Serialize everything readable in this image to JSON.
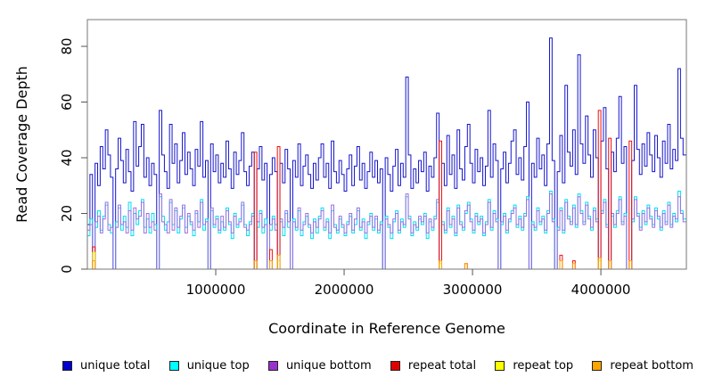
{
  "chart_data": {
    "type": "line",
    "subtype": "step",
    "title": "",
    "xlabel": "Coordinate in Reference Genome",
    "ylabel": "Read Coverage Depth",
    "xlim": [
      0,
      4666000
    ],
    "ylim": [
      0,
      89.6
    ],
    "bin_size": 20000,
    "grid": false,
    "legend_position": "bottom",
    "axis_color": "#777777",
    "tick_color": "#555555",
    "text_color": "#000000",
    "xticks": [
      {
        "value": 1000000,
        "label": "1000000"
      },
      {
        "value": 2000000,
        "label": "2000000"
      },
      {
        "value": 3000000,
        "label": "3000000"
      },
      {
        "value": 4000000,
        "label": "4000000"
      }
    ],
    "yticks": [
      {
        "value": 0,
        "label": "0"
      },
      {
        "value": 20,
        "label": "20"
      },
      {
        "value": 40,
        "label": "40"
      },
      {
        "value": 60,
        "label": "60"
      },
      {
        "value": 80,
        "label": "80"
      }
    ],
    "series": [
      {
        "name": "unique total",
        "color": "#1414CC",
        "legend_color": "#0000CD",
        "values": [
          16,
          34,
          0,
          38,
          30,
          44,
          36,
          50,
          41,
          33,
          0,
          36,
          47,
          39,
          31,
          43,
          35,
          28,
          53,
          37,
          44,
          52,
          33,
          40,
          30,
          38,
          34,
          0,
          57,
          41,
          35,
          29,
          52,
          38,
          45,
          31,
          39,
          49,
          34,
          42,
          36,
          30,
          43,
          37,
          53,
          33,
          39,
          0,
          45,
          35,
          41,
          31,
          38,
          33,
          46,
          36,
          29,
          42,
          34,
          39,
          49,
          35,
          30,
          37,
          42,
          0,
          36,
          44,
          32,
          38,
          0,
          34,
          40,
          35,
          0,
          38,
          31,
          43,
          36,
          0,
          39,
          33,
          45,
          30,
          37,
          41,
          34,
          29,
          38,
          32,
          40,
          45,
          33,
          38,
          29,
          46,
          35,
          31,
          39,
          34,
          28,
          36,
          41,
          30,
          37,
          44,
          32,
          38,
          29,
          35,
          42,
          33,
          39,
          31,
          36,
          0,
          40,
          34,
          28,
          37,
          43,
          30,
          38,
          33,
          69,
          41,
          29,
          36,
          31,
          39,
          35,
          42,
          28,
          37,
          33,
          40,
          56,
          0,
          38,
          30,
          48,
          34,
          41,
          29,
          50,
          36,
          32,
          44,
          52,
          38,
          31,
          43,
          35,
          40,
          30,
          37,
          57,
          33,
          45,
          39,
          0,
          36,
          42,
          31,
          38,
          46,
          50,
          34,
          40,
          32,
          44,
          60,
          0,
          38,
          33,
          47,
          36,
          41,
          30,
          45,
          83,
          39,
          0,
          35,
          48,
          31,
          66,
          42,
          37,
          50,
          34,
          77,
          45,
          38,
          55,
          41,
          33,
          50,
          40,
          0,
          46,
          58,
          36,
          0,
          42,
          35,
          47,
          62,
          38,
          44,
          0,
          0,
          39,
          66,
          43,
          34,
          45,
          37,
          49,
          41,
          35,
          48,
          40,
          33,
          46,
          38,
          52,
          36,
          43,
          39,
          72,
          47,
          41
        ]
      },
      {
        "name": "unique top",
        "color": "#00DDF2",
        "legend_color": "#00FFFF",
        "values": [
          12,
          18,
          0,
          15,
          21,
          14,
          19,
          23,
          16,
          13,
          0,
          17,
          22,
          14,
          19,
          15,
          24,
          12,
          20,
          16,
          21,
          25,
          15,
          18,
          13,
          20,
          16,
          0,
          26,
          19,
          14,
          17,
          24,
          16,
          21,
          13,
          18,
          22,
          15,
          19,
          16,
          12,
          20,
          17,
          25,
          14,
          18,
          0,
          21,
          15,
          19,
          13,
          17,
          14,
          22,
          16,
          11,
          20,
          15,
          18,
          23,
          16,
          12,
          17,
          20,
          0,
          15,
          21,
          13,
          18,
          0,
          14,
          19,
          16,
          0,
          17,
          12,
          20,
          15,
          0,
          18,
          14,
          21,
          12,
          17,
          19,
          15,
          11,
          18,
          13,
          19,
          22,
          14,
          18,
          11,
          21,
          16,
          13,
          18,
          15,
          12,
          17,
          19,
          13,
          16,
          21,
          14,
          18,
          11,
          16,
          20,
          14,
          18,
          13,
          17,
          0,
          19,
          15,
          11,
          17,
          21,
          13,
          18,
          15,
          26,
          19,
          12,
          17,
          14,
          18,
          16,
          20,
          11,
          17,
          14,
          19,
          24,
          0,
          17,
          13,
          22,
          15,
          19,
          12,
          23,
          17,
          14,
          20,
          24,
          18,
          13,
          20,
          16,
          19,
          12,
          17,
          25,
          14,
          21,
          18,
          0,
          16,
          20,
          13,
          17,
          21,
          23,
          15,
          19,
          14,
          20,
          26,
          0,
          17,
          14,
          22,
          16,
          19,
          13,
          21,
          28,
          18,
          0,
          15,
          22,
          13,
          25,
          19,
          17,
          23,
          15,
          27,
          21,
          17,
          24,
          19,
          14,
          22,
          18,
          0,
          21,
          25,
          16,
          0,
          19,
          15,
          21,
          26,
          17,
          20,
          0,
          0,
          17,
          26,
          20,
          15,
          21,
          16,
          23,
          19,
          16,
          22,
          18,
          14,
          21,
          17,
          24,
          16,
          20,
          17,
          28,
          21,
          18
        ]
      },
      {
        "name": "unique bottom",
        "color": "#9B6FE0",
        "legend_color": "#9932CC",
        "values": [
          14,
          16,
          0,
          17,
          19,
          13,
          18,
          24,
          14,
          15,
          0,
          15,
          23,
          16,
          17,
          13,
          21,
          14,
          22,
          18,
          19,
          24,
          13,
          20,
          15,
          17,
          14,
          0,
          27,
          17,
          16,
          13,
          25,
          14,
          22,
          15,
          19,
          23,
          13,
          20,
          17,
          14,
          21,
          15,
          24,
          16,
          17,
          0,
          22,
          16,
          18,
          14,
          19,
          15,
          21,
          17,
          13,
          19,
          16,
          17,
          24,
          15,
          14,
          16,
          19,
          0,
          17,
          20,
          15,
          16,
          0,
          16,
          18,
          14,
          0,
          18,
          15,
          21,
          17,
          0,
          17,
          15,
          22,
          14,
          16,
          20,
          16,
          13,
          17,
          15,
          18,
          21,
          15,
          17,
          13,
          23,
          15,
          14,
          19,
          16,
          13,
          16,
          20,
          14,
          18,
          22,
          15,
          17,
          13,
          17,
          19,
          15,
          19,
          14,
          16,
          0,
          18,
          16,
          13,
          18,
          20,
          14,
          17,
          16,
          27,
          18,
          13,
          16,
          15,
          19,
          17,
          19,
          13,
          18,
          15,
          18,
          25,
          0,
          16,
          14,
          21,
          16,
          18,
          13,
          22,
          16,
          15,
          21,
          23,
          17,
          14,
          19,
          17,
          18,
          13,
          16,
          24,
          15,
          20,
          17,
          0,
          17,
          19,
          14,
          18,
          20,
          22,
          16,
          18,
          15,
          19,
          25,
          0,
          16,
          15,
          21,
          17,
          18,
          14,
          20,
          27,
          17,
          0,
          14,
          21,
          14,
          24,
          18,
          16,
          22,
          16,
          26,
          20,
          16,
          23,
          18,
          15,
          21,
          17,
          0,
          20,
          24,
          15,
          0,
          20,
          16,
          20,
          25,
          16,
          19,
          0,
          0,
          18,
          25,
          19,
          14,
          20,
          17,
          22,
          18,
          15,
          21,
          19,
          15,
          20,
          16,
          23,
          15,
          19,
          18,
          26,
          20,
          17
        ]
      },
      {
        "name": "repeat total",
        "color": "#EE1111",
        "legend_color": "#E00000",
        "baseline": 0,
        "spikes": [
          [
            2,
            8
          ],
          [
            65,
            42
          ],
          [
            71,
            7
          ],
          [
            74,
            44
          ],
          [
            137,
            46
          ],
          [
            147,
            2
          ],
          [
            184,
            5
          ],
          [
            189,
            3
          ],
          [
            199,
            57
          ],
          [
            203,
            47
          ],
          [
            211,
            46
          ]
        ]
      },
      {
        "name": "repeat top",
        "color": "#F2F200",
        "legend_color": "#FFFF00",
        "baseline": 0,
        "spikes": [
          [
            2,
            6
          ],
          [
            74,
            3
          ],
          [
            137,
            2
          ],
          [
            199,
            3
          ]
        ]
      },
      {
        "name": "repeat bottom",
        "color": "#FFA500",
        "legend_color": "#FFA500",
        "baseline": 0,
        "spikes": [
          [
            2,
            3
          ],
          [
            65,
            3
          ],
          [
            71,
            3
          ],
          [
            74,
            5
          ],
          [
            137,
            3
          ],
          [
            147,
            2
          ],
          [
            184,
            3
          ],
          [
            189,
            2
          ],
          [
            199,
            4
          ],
          [
            203,
            3
          ],
          [
            211,
            3
          ]
        ]
      }
    ]
  }
}
